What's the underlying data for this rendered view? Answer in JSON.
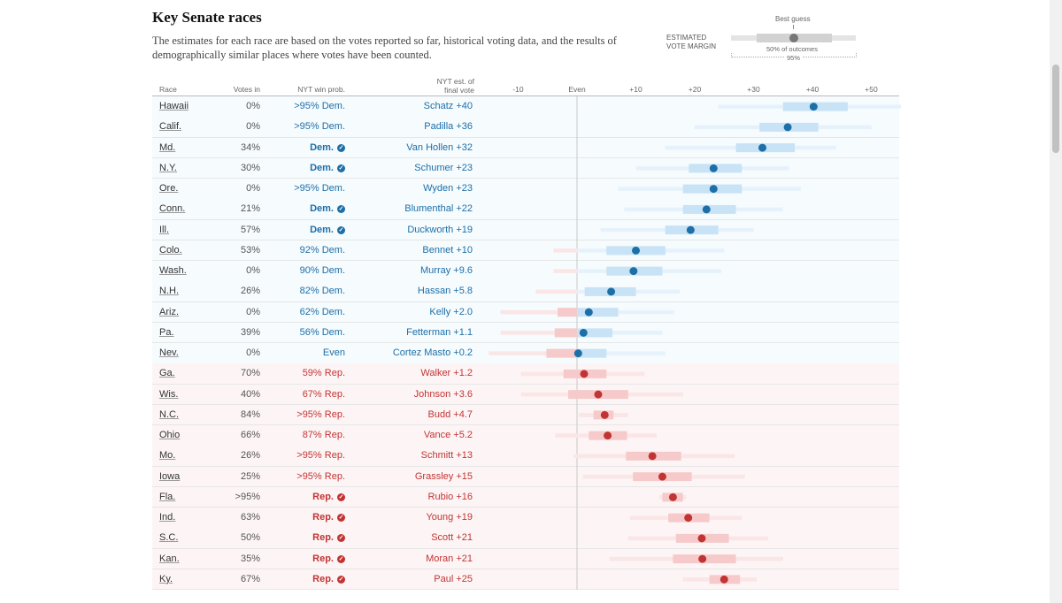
{
  "title": "Key Senate races",
  "subtitle": "The estimates for each race are based on the votes reported so far, historical voting data, and the results of demographically similar places where votes have been counted.",
  "key": {
    "label_line1": "ESTIMATED",
    "label_line2": "VOTE MARGIN",
    "best_guess": "Best guess",
    "pct50": "50% of outcomes",
    "pct95": "95%"
  },
  "headers": {
    "race": "Race",
    "votes_in": "Votes in",
    "win_prob": "NYT win prob.",
    "est_line1": "NYT est. of",
    "est_line2": "final vote"
  },
  "colors": {
    "dem": "#1d6fa8",
    "rep": "#c23434",
    "dem_50": "#c8e2f6",
    "dem_95": "#e6f2fb",
    "rep_50": "#f6caca",
    "rep_95": "#fbe5e5"
  },
  "chart_data": {
    "type": "range-dot",
    "xlabel": "ESTIMATED VOTE MARGIN",
    "xlim": [
      -14,
      55
    ],
    "x_ticks": [
      {
        "value": -10,
        "label": "-10"
      },
      {
        "value": 0,
        "label": "Even"
      },
      {
        "value": 10,
        "label": "+10"
      },
      {
        "value": 20,
        "label": "+20"
      },
      {
        "value": 30,
        "label": "+30"
      },
      {
        "value": 40,
        "label": "+40"
      },
      {
        "value": 50,
        "label": "+50"
      }
    ],
    "rows": [
      {
        "race": "Hawaii",
        "votes_in": "0%",
        "prob": ">95% Dem.",
        "called": false,
        "party": "dem",
        "est": "Schatz +40",
        "margin": 40.2,
        "lo50": 35,
        "hi50": 46,
        "lo95": 24,
        "hi95": 55
      },
      {
        "race": "Calif.",
        "votes_in": "0%",
        "prob": ">95% Dem.",
        "called": false,
        "party": "dem",
        "est": "Padilla +36",
        "margin": 35.8,
        "lo50": 31,
        "hi50": 41,
        "lo95": 20,
        "hi95": 50
      },
      {
        "race": "Md.",
        "votes_in": "34%",
        "prob": "Dem.",
        "called": true,
        "party": "dem",
        "est": "Van Hollen +32",
        "margin": 31.5,
        "lo50": 27,
        "hi50": 37,
        "lo95": 15,
        "hi95": 44
      },
      {
        "race": "N.Y.",
        "votes_in": "30%",
        "prob": "Dem.",
        "called": true,
        "party": "dem",
        "est": "Schumer +23",
        "margin": 23.2,
        "lo50": 19,
        "hi50": 28,
        "lo95": 10,
        "hi95": 36
      },
      {
        "race": "Ore.",
        "votes_in": "0%",
        "prob": ">95% Dem.",
        "called": false,
        "party": "dem",
        "est": "Wyden +23",
        "margin": 23.2,
        "lo50": 18,
        "hi50": 28,
        "lo95": 7,
        "hi95": 38
      },
      {
        "race": "Conn.",
        "votes_in": "21%",
        "prob": "Dem.",
        "called": true,
        "party": "dem",
        "est": "Blumenthal +22",
        "margin": 22,
        "lo50": 18,
        "hi50": 27,
        "lo95": 8,
        "hi95": 35
      },
      {
        "race": "Ill.",
        "votes_in": "57%",
        "prob": "Dem.",
        "called": true,
        "party": "dem",
        "est": "Duckworth +19",
        "margin": 19.3,
        "lo50": 15,
        "hi50": 24,
        "lo95": 4,
        "hi95": 30
      },
      {
        "race": "Colo.",
        "votes_in": "53%",
        "prob": "92% Dem.",
        "called": false,
        "party": "dem",
        "est": "Bennet +10",
        "margin": 10,
        "lo50": 5,
        "hi50": 15,
        "lo95": -4,
        "hi95": 25
      },
      {
        "race": "Wash.",
        "votes_in": "0%",
        "prob": "90% Dem.",
        "called": false,
        "party": "dem",
        "est": "Murray +9.6",
        "margin": 9.6,
        "lo50": 5,
        "hi50": 14.5,
        "lo95": -4,
        "hi95": 24.5
      },
      {
        "race": "N.H.",
        "votes_in": "26%",
        "prob": "82% Dem.",
        "called": false,
        "party": "dem",
        "est": "Hassan +5.8",
        "margin": 5.8,
        "lo50": 1.3,
        "hi50": 10,
        "lo95": -7,
        "hi95": 17.5
      },
      {
        "race": "Ariz.",
        "votes_in": "0%",
        "prob": "62% Dem.",
        "called": false,
        "party": "dem",
        "est": "Kelly +2.0",
        "margin": 2,
        "lo50": -3.3,
        "hi50": 7,
        "lo95": -13,
        "hi95": 16.5
      },
      {
        "race": "Pa.",
        "votes_in": "39%",
        "prob": "56% Dem.",
        "called": false,
        "party": "dem",
        "est": "Fetterman +1.1",
        "margin": 1.1,
        "lo50": -3.8,
        "hi50": 6,
        "lo95": -13,
        "hi95": 14.5
      },
      {
        "race": "Nev.",
        "votes_in": "0%",
        "prob": "Even",
        "called": false,
        "party": "even",
        "est": "Cortez Masto +0.2",
        "margin": 0.2,
        "lo50": -5.2,
        "hi50": 5,
        "lo95": -15,
        "hi95": 15
      },
      {
        "race": "Ga.",
        "votes_in": "70%",
        "prob": "59% Rep.",
        "called": false,
        "party": "rep",
        "est": "Walker +1.2",
        "margin": 1.2,
        "lo50": -2.3,
        "hi50": 5,
        "lo95": -9.5,
        "hi95": 11.5
      },
      {
        "race": "Wis.",
        "votes_in": "40%",
        "prob": "67% Rep.",
        "called": false,
        "party": "rep",
        "est": "Johnson +3.6",
        "margin": 3.6,
        "lo50": -1.5,
        "hi50": 8.7,
        "lo95": -9.5,
        "hi95": 18
      },
      {
        "race": "N.C.",
        "votes_in": "84%",
        "prob": ">95% Rep.",
        "called": false,
        "party": "rep",
        "est": "Budd +4.7",
        "margin": 4.7,
        "lo50": 2.8,
        "hi50": 6.2,
        "lo95": 0.3,
        "hi95": 8.7
      },
      {
        "race": "Ohio",
        "votes_in": "66%",
        "prob": "87% Rep.",
        "called": false,
        "party": "rep",
        "est": "Vance +5.2",
        "margin": 5.2,
        "lo50": 2,
        "hi50": 8.5,
        "lo95": -3.7,
        "hi95": 13.5
      },
      {
        "race": "Mo.",
        "votes_in": "26%",
        "prob": ">95% Rep.",
        "called": false,
        "party": "rep",
        "est": "Schmitt +13",
        "margin": 12.8,
        "lo50": 8.3,
        "hi50": 17.7,
        "lo95": -0.5,
        "hi95": 26.8
      },
      {
        "race": "Iowa",
        "votes_in": "25%",
        "prob": ">95% Rep.",
        "called": false,
        "party": "rep",
        "est": "Grassley +15",
        "margin": 14.5,
        "lo50": 9.5,
        "hi50": 19.5,
        "lo95": 1,
        "hi95": 28.5
      },
      {
        "race": "Fla.",
        "votes_in": ">95%",
        "prob": "Rep.",
        "called": true,
        "party": "rep",
        "est": "Rubio +16",
        "margin": 16.3,
        "lo50": 14.5,
        "hi50": 18,
        "lo95": 14,
        "hi95": 18.5
      },
      {
        "race": "Ind.",
        "votes_in": "63%",
        "prob": "Rep.",
        "called": true,
        "party": "rep",
        "est": "Young +19",
        "margin": 18.9,
        "lo50": 15.5,
        "hi50": 22.5,
        "lo95": 9,
        "hi95": 28
      },
      {
        "race": "S.C.",
        "votes_in": "50%",
        "prob": "Rep.",
        "called": true,
        "party": "rep",
        "est": "Scott +21",
        "margin": 21.2,
        "lo50": 16.8,
        "hi50": 25.8,
        "lo95": 8.7,
        "hi95": 32.5
      },
      {
        "race": "Kan.",
        "votes_in": "35%",
        "prob": "Rep.",
        "called": true,
        "party": "rep",
        "est": "Moran +21",
        "margin": 21.3,
        "lo50": 16.3,
        "hi50": 27,
        "lo95": 5.5,
        "hi95": 35
      },
      {
        "race": "Ky.",
        "votes_in": "67%",
        "prob": "Rep.",
        "called": true,
        "party": "rep",
        "est": "Paul +25",
        "margin": 25,
        "lo50": 22.5,
        "hi50": 27.7,
        "lo95": 18,
        "hi95": 30.5
      }
    ]
  }
}
